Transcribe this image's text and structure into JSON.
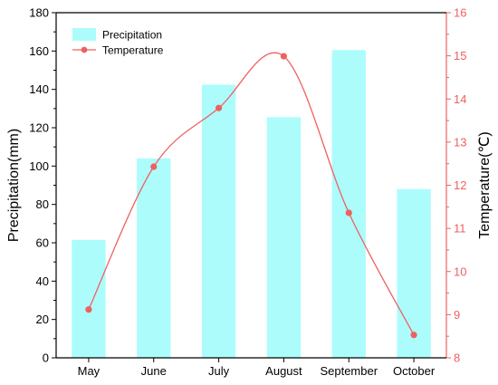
{
  "chart_data": {
    "type": "bar+line",
    "categories": [
      "May",
      "June",
      "July",
      "August",
      "September",
      "October"
    ],
    "series": [
      {
        "name": "Precipitation",
        "type": "bar",
        "axis": "left",
        "values": [
          61.5,
          104,
          142.5,
          125.5,
          160.5,
          88
        ],
        "color": "#adfcfc"
      },
      {
        "name": "Temperature",
        "type": "line",
        "axis": "right",
        "values": [
          9.12,
          12.43,
          13.79,
          14.99,
          11.36,
          8.53
        ],
        "color": "#f06060",
        "smooth": true
      }
    ],
    "ylabel": "Precipitation(mm)",
    "y2label": "Temperature(℃)",
    "xlabel": "",
    "ylim": [
      0,
      180
    ],
    "y2lim": [
      8,
      16
    ],
    "yticks": [
      0,
      20,
      40,
      60,
      80,
      100,
      120,
      140,
      160,
      180
    ],
    "y2ticks": [
      8,
      9,
      10,
      11,
      12,
      13,
      14,
      15,
      16
    ],
    "legend": {
      "placement": "top-left",
      "entries": [
        "Precipitation",
        "Temperature"
      ]
    },
    "grid": false,
    "colors": {
      "left_axis": "#000000",
      "right_axis": "#f06060"
    }
  }
}
